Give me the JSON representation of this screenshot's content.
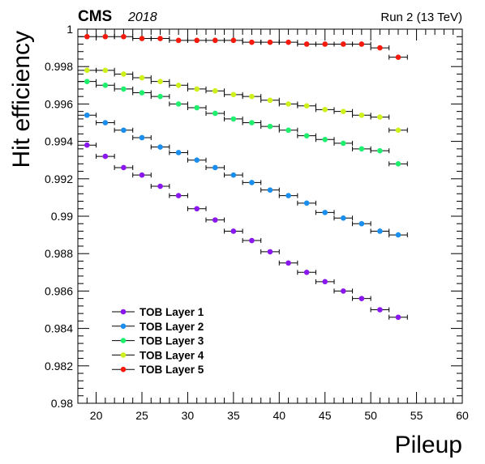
{
  "header": {
    "experiment": "CMS",
    "year": "2018",
    "run_info": "Run 2 (13 TeV)"
  },
  "chart_data": {
    "type": "scatter",
    "xlabel": "Pileup",
    "ylabel": "Hit efficiency",
    "xlim": [
      18,
      60
    ],
    "ylim": [
      0.98,
      1.0
    ],
    "x_ticks": [
      20,
      25,
      30,
      35,
      40,
      45,
      50,
      55,
      60
    ],
    "x_tick_labels": [
      "20",
      "25",
      "30",
      "35",
      "40",
      "45",
      "50",
      "55",
      "60"
    ],
    "y_ticks": [
      0.98,
      0.982,
      0.984,
      0.986,
      0.988,
      0.99,
      0.992,
      0.994,
      0.996,
      0.998,
      1.0
    ],
    "y_tick_labels": [
      "0.98",
      "0.982",
      "0.984",
      "0.986",
      "0.988",
      "0.99",
      "0.992",
      "0.994",
      "0.996",
      "0.998",
      "1"
    ],
    "x_error": 1,
    "legend_position": "bottom-left",
    "x": [
      19,
      21,
      23,
      25,
      27,
      29,
      31,
      33,
      35,
      37,
      39,
      41,
      43,
      45,
      47,
      49,
      51,
      53
    ],
    "series": [
      {
        "name": "TOB Layer 1",
        "color": "#8a17ef",
        "values": [
          0.9938,
          0.9932,
          0.9926,
          0.9922,
          0.9916,
          0.9911,
          0.9904,
          0.9898,
          0.9892,
          0.9887,
          0.9881,
          0.9875,
          0.987,
          0.9865,
          0.986,
          0.9856,
          0.985,
          0.9846
        ]
      },
      {
        "name": "TOB Layer 2",
        "color": "#1a8eef",
        "values": [
          0.9954,
          0.995,
          0.9946,
          0.9942,
          0.9937,
          0.9934,
          0.993,
          0.9926,
          0.9922,
          0.9918,
          0.9914,
          0.9911,
          0.9907,
          0.9902,
          0.9899,
          0.9896,
          0.9892,
          0.989
        ]
      },
      {
        "name": "TOB Layer 3",
        "color": "#1ef06e",
        "values": [
          0.9972,
          0.997,
          0.9968,
          0.9966,
          0.9964,
          0.996,
          0.9958,
          0.9955,
          0.9952,
          0.995,
          0.9948,
          0.9946,
          0.9943,
          0.9941,
          0.9939,
          0.9936,
          0.9935,
          0.9928
        ]
      },
      {
        "name": "TOB Layer 4",
        "color": "#cff01b",
        "values": [
          0.9978,
          0.9978,
          0.9976,
          0.9974,
          0.9972,
          0.997,
          0.9968,
          0.9967,
          0.9965,
          0.9964,
          0.9962,
          0.996,
          0.9959,
          0.9957,
          0.9956,
          0.9954,
          0.9953,
          0.9946
        ]
      },
      {
        "name": "TOB Layer 5",
        "color": "#f51a0c",
        "values": [
          0.9996,
          0.9996,
          0.9996,
          0.9995,
          0.9995,
          0.9994,
          0.9994,
          0.9994,
          0.9994,
          0.9993,
          0.9993,
          0.9993,
          0.9992,
          0.9992,
          0.9992,
          0.9992,
          0.999,
          0.9985
        ]
      }
    ]
  }
}
